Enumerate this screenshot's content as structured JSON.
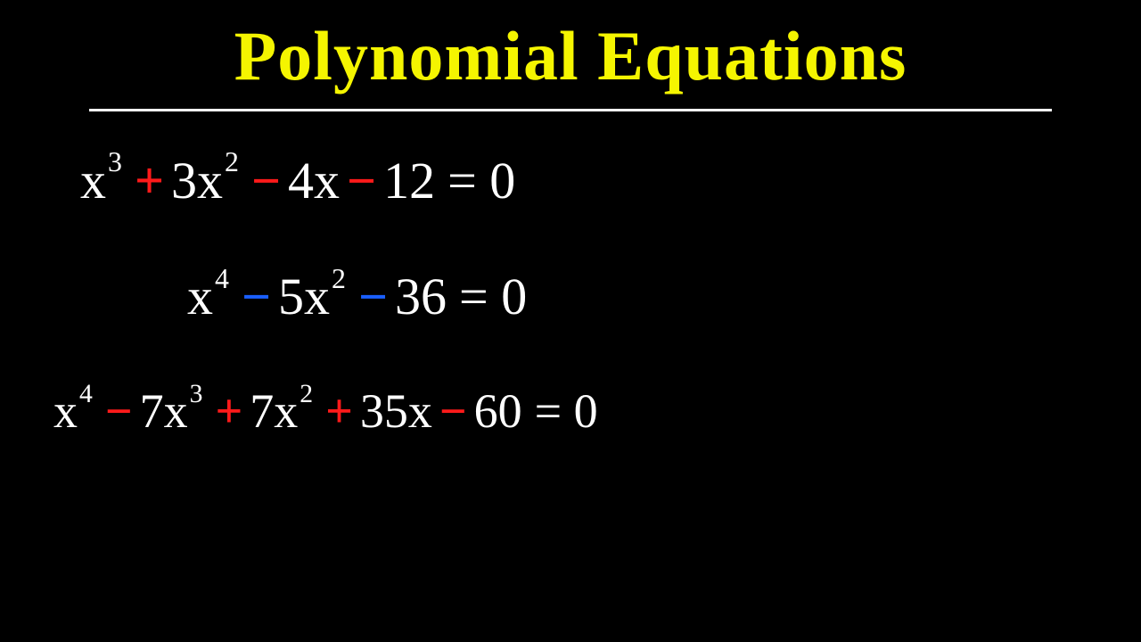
{
  "title": {
    "text": "Polynomial Equations",
    "color": "#f5f500",
    "fontsize": 78
  },
  "underline_color": "#ffffff",
  "colors": {
    "white": "#ffffff",
    "red": "#ff1a1a",
    "blue": "#1a5fff",
    "yellow": "#f5f500",
    "background": "#000000"
  },
  "equations": [
    {
      "tokens": [
        {
          "type": "term",
          "base": "x",
          "exp": "3",
          "color": "white"
        },
        {
          "type": "op",
          "text": "+",
          "color": "red"
        },
        {
          "type": "term",
          "base": "3x",
          "exp": "2",
          "color": "white"
        },
        {
          "type": "op",
          "text": "−",
          "color": "red"
        },
        {
          "type": "term",
          "base": "4x",
          "exp": "",
          "color": "white"
        },
        {
          "type": "op",
          "text": "−",
          "color": "red"
        },
        {
          "type": "term",
          "base": "12",
          "exp": "",
          "color": "white"
        },
        {
          "type": "eq",
          "text": "= 0",
          "color": "white"
        }
      ]
    },
    {
      "tokens": [
        {
          "type": "term",
          "base": "x",
          "exp": "4",
          "color": "white"
        },
        {
          "type": "op",
          "text": "−",
          "color": "blue"
        },
        {
          "type": "term",
          "base": "5x",
          "exp": "2",
          "color": "white"
        },
        {
          "type": "op",
          "text": "−",
          "color": "blue"
        },
        {
          "type": "term",
          "base": "36",
          "exp": "",
          "color": "white"
        },
        {
          "type": "eq",
          "text": "= 0",
          "color": "white"
        }
      ]
    },
    {
      "tokens": [
        {
          "type": "term",
          "base": "x",
          "exp": "4",
          "color": "white"
        },
        {
          "type": "op",
          "text": "−",
          "color": "red"
        },
        {
          "type": "term",
          "base": "7x",
          "exp": "3",
          "color": "white"
        },
        {
          "type": "op",
          "text": "+",
          "color": "red"
        },
        {
          "type": "term",
          "base": "7x",
          "exp": "2",
          "color": "white"
        },
        {
          "type": "op",
          "text": "+",
          "color": "red"
        },
        {
          "type": "term",
          "base": "35x",
          "exp": "",
          "color": "white"
        },
        {
          "type": "op",
          "text": "−",
          "color": "red"
        },
        {
          "type": "term",
          "base": "60",
          "exp": "",
          "color": "white"
        },
        {
          "type": "eq",
          "text": "= 0",
          "color": "white"
        }
      ]
    }
  ]
}
